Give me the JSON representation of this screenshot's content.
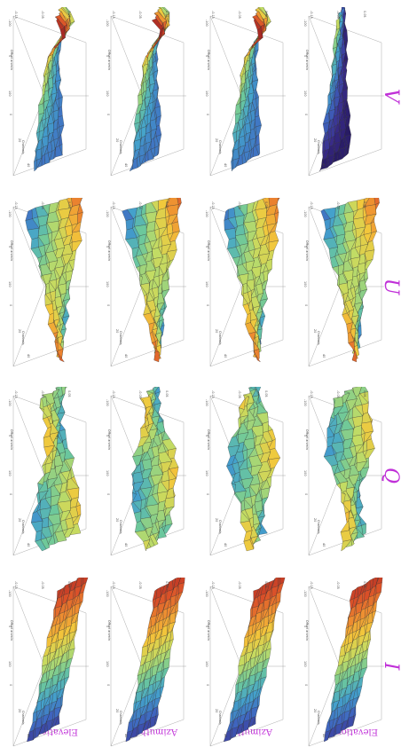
{
  "figure": {
    "row_labels": [
      "Elevation",
      "Azimuth-X",
      "Azimuth",
      "Elevation-X"
    ],
    "col_labels": [
      "I",
      "Q",
      "U",
      "V"
    ],
    "panel_axis_labels": {
      "freq": "Channels",
      "offset": "Offset arcmin"
    },
    "panel_ticks": {
      "freq": [
        "0",
        "20",
        "40"
      ],
      "offset": [
        "-100",
        "0",
        "100"
      ],
      "value": [
        "-0.15",
        "-0.05",
        "0.05"
      ]
    },
    "colors": {
      "label": "#c030d8",
      "colormap": [
        "#1c1048",
        "#3a2c8c",
        "#3f66c0",
        "#44a2cc",
        "#6cc89c",
        "#c2dc64",
        "#f2c83c",
        "#ee8c30",
        "#d84c28",
        "#a82a24"
      ]
    }
  }
}
